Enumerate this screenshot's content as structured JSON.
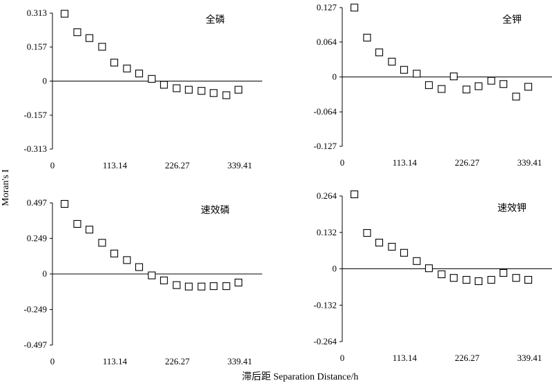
{
  "figure": {
    "ylabel": "Moran's I",
    "xlabel": "滞后距 Separation Distance/h"
  },
  "chart_data": [
    {
      "type": "scatter",
      "title": "全磷",
      "xticks": [
        0,
        113.14,
        226.27,
        339.41
      ],
      "xtick_labels": [
        "0",
        "113.14",
        "226.27",
        "339.41"
      ],
      "xlim": [
        0,
        380
      ],
      "ylim": [
        -0.313,
        0.313
      ],
      "yticks": [
        0.313,
        0.157,
        0,
        -0.157,
        -0.313
      ],
      "ytick_labels": [
        "0.313",
        "0.157",
        "0",
        "-0.157",
        "-0.313"
      ],
      "x": [
        22,
        45,
        67,
        90,
        112,
        135,
        157,
        180,
        202,
        225,
        247,
        270,
        292,
        315,
        337
      ],
      "y": [
        0.31,
        0.225,
        0.198,
        0.158,
        0.085,
        0.058,
        0.035,
        0.01,
        -0.017,
        -0.033,
        -0.04,
        -0.045,
        -0.055,
        -0.065,
        -0.04
      ]
    },
    {
      "type": "scatter",
      "title": "全钾",
      "xticks": [
        0,
        113.14,
        226.27,
        339.41
      ],
      "xtick_labels": [
        "0",
        "113.14",
        "226.27",
        "339.41"
      ],
      "xlim": [
        0,
        380
      ],
      "ylim": [
        -0.127,
        0.127
      ],
      "yticks": [
        0.127,
        0.064,
        0,
        -0.064,
        -0.127
      ],
      "ytick_labels": [
        "0.127",
        "0.064",
        "0",
        "-0.064",
        "-0.127"
      ],
      "x": [
        22,
        45,
        67,
        90,
        112,
        135,
        157,
        180,
        202,
        225,
        247,
        270,
        292,
        315,
        337
      ],
      "y": [
        0.127,
        0.072,
        0.045,
        0.028,
        0.013,
        0.006,
        -0.015,
        -0.022,
        0.001,
        -0.023,
        -0.017,
        -0.007,
        -0.013,
        -0.036,
        -0.018
      ]
    },
    {
      "type": "scatter",
      "title": "速效磷",
      "xticks": [
        0,
        113.14,
        226.27,
        339.41
      ],
      "xtick_labels": [
        "0",
        "113.14",
        "226.27",
        "339.41"
      ],
      "xlim": [
        0,
        380
      ],
      "ylim": [
        -0.497,
        0.497
      ],
      "yticks": [
        0.497,
        0.249,
        0,
        -0.249,
        -0.497
      ],
      "ytick_labels": [
        "0.497",
        "0.249",
        "0",
        "-0.249",
        "-0.497"
      ],
      "x": [
        22,
        45,
        67,
        90,
        112,
        135,
        157,
        180,
        202,
        225,
        247,
        270,
        292,
        315,
        337
      ],
      "y": [
        0.49,
        0.35,
        0.31,
        0.218,
        0.143,
        0.097,
        0.048,
        -0.01,
        -0.045,
        -0.078,
        -0.088,
        -0.088,
        -0.085,
        -0.085,
        -0.06
      ]
    },
    {
      "type": "scatter",
      "title": "速效钾",
      "xticks": [
        0,
        113.14,
        226.27,
        339.41
      ],
      "xtick_labels": [
        "0",
        "113.14",
        "226.27",
        "339.41"
      ],
      "xlim": [
        0,
        380
      ],
      "ylim": [
        -0.264,
        0.264
      ],
      "yticks": [
        0.264,
        0.132,
        0,
        -0.132,
        -0.264
      ],
      "ytick_labels": [
        "0.264",
        "0.132",
        "0",
        "-0.132",
        "-0.264"
      ],
      "x": [
        22,
        45,
        67,
        90,
        112,
        135,
        157,
        180,
        202,
        225,
        247,
        270,
        292,
        315,
        337
      ],
      "y": [
        0.27,
        0.13,
        0.095,
        0.08,
        0.058,
        0.028,
        0.002,
        -0.02,
        -0.033,
        -0.04,
        -0.045,
        -0.04,
        -0.015,
        -0.033,
        -0.04
      ]
    }
  ]
}
